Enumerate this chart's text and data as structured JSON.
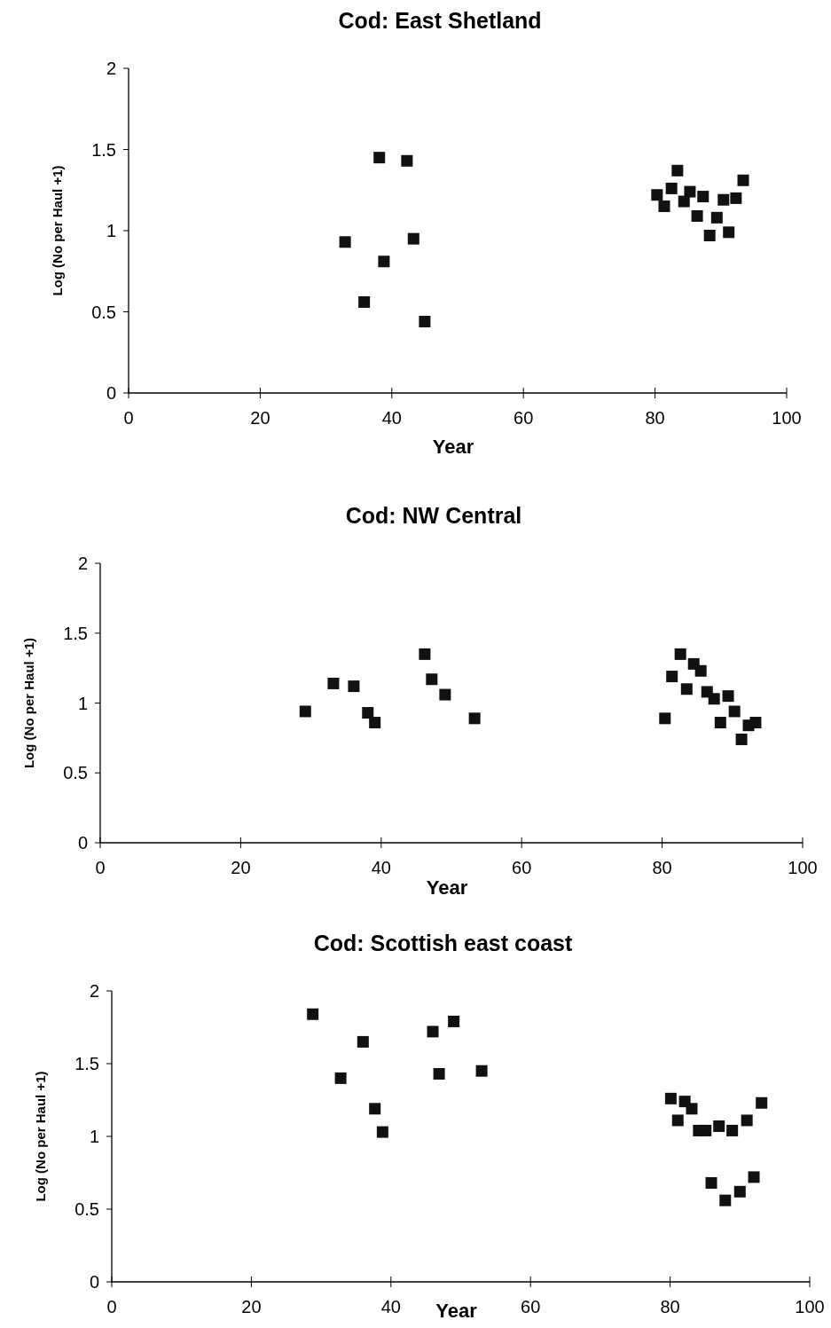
{
  "chart_data": [
    {
      "type": "scatter",
      "title": "Cod: East Shetland",
      "xlabel": "Year",
      "ylabel": "Log (No per Haul +1)",
      "xlim": [
        0,
        100
      ],
      "xticks": [
        0,
        20,
        40,
        60,
        80,
        100
      ],
      "ylim": [
        0,
        2
      ],
      "yticks": [
        0,
        0.5,
        1,
        1.5,
        2
      ],
      "marker": "square",
      "grid": false,
      "series": [
        {
          "color": "#111111",
          "x": [
            32.9,
            35.8,
            38.1,
            38.8,
            42.3,
            43.3,
            45.0,
            80.3,
            81.4,
            82.5,
            83.4,
            84.4,
            85.3,
            86.4,
            87.3,
            88.3,
            89.4,
            90.4,
            91.2,
            92.3,
            93.4
          ],
          "values": [
            0.93,
            0.56,
            1.45,
            0.81,
            1.43,
            0.95,
            0.44,
            1.22,
            1.15,
            1.26,
            1.37,
            1.18,
            1.24,
            1.09,
            1.21,
            0.97,
            1.08,
            1.19,
            0.99,
            1.2,
            1.31
          ]
        }
      ]
    },
    {
      "type": "scatter",
      "title": "Cod: NW Central",
      "xlabel": "Year",
      "ylabel": "Log (No per Haul +1)",
      "xlim": [
        0,
        100
      ],
      "xticks": [
        0,
        20,
        40,
        60,
        80,
        100
      ],
      "ylim": [
        0,
        2
      ],
      "yticks": [
        0,
        0.5,
        1,
        1.5,
        2
      ],
      "marker": "square",
      "grid": false,
      "series": [
        {
          "color": "#111111",
          "x": [
            29.2,
            33.2,
            36.1,
            38.1,
            39.1,
            46.2,
            47.2,
            49.1,
            53.3,
            80.4,
            81.4,
            82.6,
            83.5,
            84.5,
            85.5,
            86.4,
            87.4,
            88.3,
            89.4,
            90.3,
            91.3,
            92.3,
            93.3
          ],
          "values": [
            0.94,
            1.14,
            1.12,
            0.93,
            0.86,
            1.35,
            1.17,
            1.06,
            0.89,
            0.89,
            1.19,
            1.35,
            1.1,
            1.28,
            1.23,
            1.08,
            1.03,
            0.86,
            1.05,
            0.94,
            0.74,
            0.84,
            0.86
          ]
        }
      ]
    },
    {
      "type": "scatter",
      "title": "Cod: Scottish east coast",
      "xlabel": "Year",
      "ylabel": "Log (No per Haul +1)",
      "xlim": [
        0,
        100
      ],
      "xticks": [
        0,
        20,
        40,
        60,
        80,
        100
      ],
      "ylim": [
        0,
        2
      ],
      "yticks": [
        0,
        0.5,
        1,
        1.5,
        2
      ],
      "marker": "square",
      "grid": false,
      "series": [
        {
          "color": "#111111",
          "x": [
            28.8,
            32.8,
            36.0,
            37.7,
            38.8,
            46.0,
            46.9,
            49.0,
            53.0,
            80.1,
            81.1,
            82.1,
            83.1,
            84.1,
            85.1,
            85.9,
            87.0,
            87.9,
            88.9,
            90.0,
            91.0,
            92.0,
            93.1
          ],
          "values": [
            1.84,
            1.4,
            1.65,
            1.19,
            1.03,
            1.72,
            1.43,
            1.79,
            1.45,
            1.26,
            1.11,
            1.24,
            1.19,
            1.04,
            1.04,
            0.68,
            1.07,
            0.56,
            1.04,
            0.62,
            1.11,
            0.72,
            1.23
          ]
        }
      ]
    }
  ]
}
